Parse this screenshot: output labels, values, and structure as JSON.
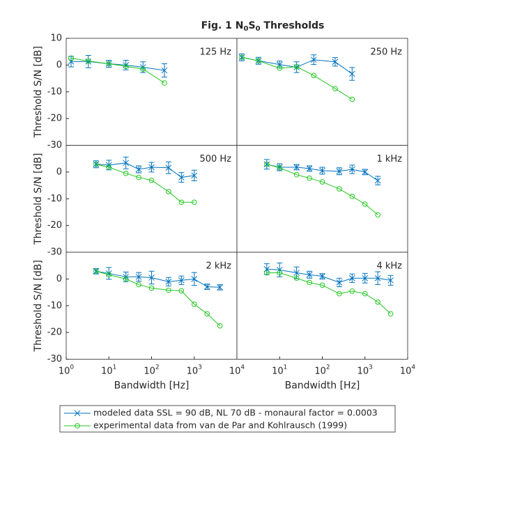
{
  "figure": {
    "title_parts": [
      {
        "text": "Fig. 1 N"
      },
      {
        "text": "0",
        "sub": true
      },
      {
        "text": "S"
      },
      {
        "text": "0",
        "sub": true
      },
      {
        "text": " Thresholds"
      }
    ],
    "legend": [
      {
        "name": "modeled data SSL = 90 dB, NL 70 dB  - monaural factor = 0.0003",
        "color": "#0072bd",
        "marker": "x"
      },
      {
        "name": "experimental data from van de Par and Kohlrausch (1999)",
        "color": "#22c81e",
        "marker": "o"
      }
    ]
  },
  "chart_data": [
    {
      "type": "line",
      "annotation": "125 Hz",
      "ylabel": "Threshold S/N [dB]",
      "log_x": true,
      "xlim": [
        1,
        10000
      ],
      "ylim": [
        -30,
        10
      ],
      "yticks": [
        -30,
        -20,
        -10,
        0,
        10
      ],
      "series": [
        {
          "color": "#0072bd",
          "marker": "x",
          "x": [
            1.3,
            3.3,
            10,
            25,
            63,
            200
          ],
          "values": [
            1.3,
            1.3,
            0.5,
            0,
            -0.8,
            -2
          ],
          "errors": [
            2,
            2.3,
            1.3,
            1.8,
            2,
            2.5
          ]
        },
        {
          "color": "#22c81e",
          "marker": "o",
          "x": [
            1.3,
            3.3,
            10,
            25,
            63,
            200
          ],
          "values": [
            2.6,
            1.5,
            0.5,
            -0.5,
            -1.5,
            -6.7
          ]
        }
      ]
    },
    {
      "type": "line",
      "annotation": "250 Hz",
      "log_x": true,
      "xlim": [
        1,
        10000
      ],
      "ylim": [
        -30,
        10
      ],
      "series": [
        {
          "color": "#0072bd",
          "marker": "x",
          "x": [
            1.3,
            3.2,
            10,
            25,
            63,
            200,
            500
          ],
          "values": [
            2.9,
            1.6,
            0.2,
            -0.8,
            2,
            1.2,
            -3.3
          ],
          "errors": [
            1.3,
            1.3,
            1.3,
            2,
            1.8,
            1.6,
            2.4
          ]
        },
        {
          "color": "#22c81e",
          "marker": "o",
          "x": [
            1.3,
            3.2,
            10,
            25,
            63,
            200,
            500
          ],
          "values": [
            2.9,
            1.6,
            -1.2,
            -0.6,
            -3.9,
            -8.8,
            -12.8
          ]
        }
      ]
    },
    {
      "type": "line",
      "annotation": "500 Hz",
      "ylabel": "Threshold S/N [dB]",
      "log_x": true,
      "xlim": [
        1,
        10000
      ],
      "ylim": [
        -30,
        10
      ],
      "yticks": [
        -30,
        -20,
        -10,
        0
      ],
      "series": [
        {
          "color": "#0072bd",
          "marker": "x",
          "x": [
            5,
            10,
            25,
            50,
            100,
            250,
            500,
            1000
          ],
          "values": [
            2.9,
            2.6,
            3.4,
            1,
            1.8,
            1.6,
            -2,
            -1.3
          ],
          "errors": [
            1.3,
            1.8,
            2.2,
            1.3,
            1.8,
            2.2,
            1.8,
            2
          ]
        },
        {
          "color": "#22c81e",
          "marker": "o",
          "x": [
            5,
            10,
            25,
            50,
            100,
            250,
            500,
            1000
          ],
          "values": [
            2.9,
            1.8,
            -0.5,
            -2,
            -3.1,
            -7.3,
            -11.3,
            -11.3
          ]
        }
      ]
    },
    {
      "type": "line",
      "annotation": "1 kHz",
      "log_x": true,
      "xlim": [
        1,
        10000
      ],
      "ylim": [
        -30,
        10
      ],
      "series": [
        {
          "color": "#0072bd",
          "marker": "x",
          "x": [
            5,
            10,
            25,
            50,
            100,
            250,
            500,
            1000,
            2000
          ],
          "values": [
            2.9,
            1.8,
            1.8,
            1.3,
            0.5,
            0.3,
            1,
            0,
            -3.2
          ],
          "errors": [
            1.8,
            1.3,
            1,
            1,
            1.3,
            1.3,
            1.6,
            1,
            1.6
          ]
        },
        {
          "color": "#22c81e",
          "marker": "o",
          "x": [
            5,
            10,
            25,
            50,
            100,
            250,
            500,
            1000,
            2000
          ],
          "values": [
            2.9,
            1.6,
            -1,
            -2.3,
            -3.7,
            -6.3,
            -9.1,
            -12,
            -16
          ]
        }
      ]
    },
    {
      "type": "line",
      "annotation": "2 kHz",
      "ylabel": "Threshold S/N [dB]",
      "xlabel": "Bandwidth [Hz]",
      "log_x": true,
      "xlim": [
        1,
        10000
      ],
      "ylim": [
        -30,
        10
      ],
      "yticks": [
        -30,
        -20,
        -10,
        0
      ],
      "xticks": [
        {
          "value": 1,
          "label": "10",
          "sup": "0"
        },
        {
          "value": 10,
          "label": "10",
          "sup": "1"
        },
        {
          "value": 100,
          "label": "10",
          "sup": "2"
        },
        {
          "value": 1000,
          "label": "10",
          "sup": "3"
        },
        {
          "value": 10000,
          "label": "10",
          "sup": "4"
        }
      ],
      "series": [
        {
          "color": "#0072bd",
          "marker": "x",
          "x": [
            5,
            10,
            25,
            50,
            100,
            250,
            500,
            1000,
            2000,
            4000
          ],
          "values": [
            2.9,
            2.1,
            0.8,
            0.8,
            0.5,
            -1,
            -0.5,
            0,
            -2.9,
            -3.1
          ],
          "errors": [
            1,
            2.2,
            1.8,
            1.6,
            2.4,
            1.6,
            1.6,
            2.4,
            1,
            1
          ]
        },
        {
          "color": "#22c81e",
          "marker": "o",
          "x": [
            5,
            10,
            25,
            50,
            100,
            250,
            500,
            1000,
            2000,
            4000
          ],
          "values": [
            2.9,
            1.6,
            0,
            -2.1,
            -3.4,
            -4.2,
            -4.4,
            -9.4,
            -13,
            -17.5
          ]
        }
      ]
    },
    {
      "type": "line",
      "annotation": "4 kHz",
      "xlabel": "Bandwidth [Hz]",
      "log_x": true,
      "xlim": [
        1,
        10000
      ],
      "ylim": [
        -30,
        10
      ],
      "xticks": [
        {
          "value": 10,
          "label": "10",
          "sup": "1"
        },
        {
          "value": 100,
          "label": "10",
          "sup": "2"
        },
        {
          "value": 1000,
          "label": "10",
          "sup": "3"
        },
        {
          "value": 10000,
          "label": "10",
          "sup": "4"
        }
      ],
      "series": [
        {
          "color": "#0072bd",
          "marker": "x",
          "x": [
            5,
            10,
            25,
            50,
            100,
            250,
            500,
            1000,
            2000,
            4000
          ],
          "values": [
            3.7,
            3.4,
            2.3,
            1.6,
            1,
            -1.3,
            0.3,
            0.3,
            0.3,
            -0.5
          ],
          "errors": [
            2,
            2.6,
            2.2,
            1.3,
            1,
            1.6,
            1.6,
            1.8,
            2.4,
            1.8
          ]
        },
        {
          "color": "#22c81e",
          "marker": "o",
          "x": [
            5,
            10,
            25,
            50,
            100,
            250,
            500,
            1000,
            2000,
            4000
          ],
          "values": [
            2.3,
            2.3,
            0.3,
            -1.3,
            -2.3,
            -5.5,
            -4.5,
            -5.5,
            -8.6,
            -13
          ]
        }
      ]
    }
  ]
}
